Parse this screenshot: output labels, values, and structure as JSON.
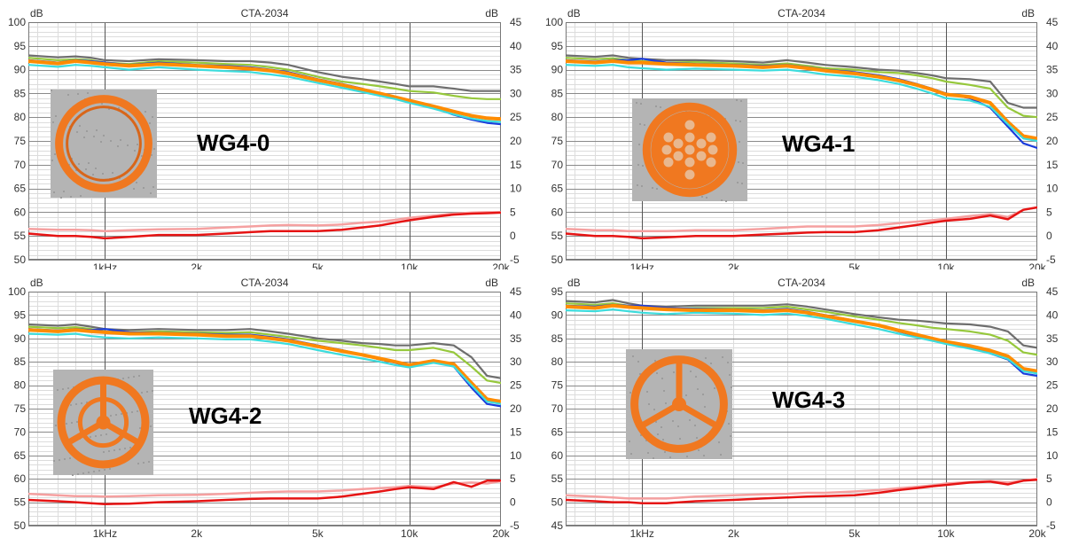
{
  "colors": {
    "grid_major": "#8a8a8a",
    "grid_minor": "#dcdcdc",
    "series_gray": "#6e6e6e",
    "series_green": "#96c83c",
    "series_blue": "#1a3cdc",
    "series_orange": "#ff8c00",
    "series_cyan": "#3cdcdc",
    "series_red": "#e61414",
    "series_pink": "#f5a0a0",
    "photo_bg": "#b4b4b4",
    "ring": "#f07820"
  },
  "chart_data": [
    {
      "type": "line",
      "title": "CTA-2034",
      "left_unit": "dB",
      "right_unit": "dB",
      "label": "WG4-0",
      "photo_icon": "waveguide-ring-open-icon",
      "x_scale": "log",
      "xlim": [
        560,
        20000
      ],
      "x_ticks": [
        {
          "v": 1000,
          "t": "1kHz"
        },
        {
          "v": 2000,
          "t": "2k"
        },
        {
          "v": 5000,
          "t": "5k"
        },
        {
          "v": 10000,
          "t": "10k"
        },
        {
          "v": 20000,
          "t": "20k"
        }
      ],
      "ylim_left": [
        50,
        100
      ],
      "y_ticks_left": [
        "100",
        "95",
        "90",
        "85",
        "80",
        "75",
        "70",
        "65",
        "60",
        "55",
        "50"
      ],
      "ylim_right": [
        -5,
        45
      ],
      "y_ticks_right": [
        "45",
        "40",
        "35",
        "30",
        "25",
        "20",
        "15",
        "10",
        "5",
        "0",
        "-5"
      ],
      "x": [
        560,
        700,
        800,
        900,
        1000,
        1200,
        1500,
        2000,
        2500,
        3000,
        3500,
        4000,
        5000,
        6000,
        7000,
        8000,
        9000,
        10000,
        12000,
        14000,
        16000,
        18000,
        20000
      ],
      "series": [
        {
          "color": "series_gray",
          "values": [
            93,
            92.6,
            92.8,
            92.5,
            92,
            91.8,
            92.2,
            92,
            91.8,
            91.8,
            91.5,
            91,
            89.5,
            88.5,
            88,
            87.5,
            87,
            86.5,
            86.5,
            86,
            85.5,
            85.5,
            85.5
          ]
        },
        {
          "color": "series_green",
          "values": [
            92.5,
            92,
            92.2,
            92,
            91.5,
            91.2,
            91.8,
            91.5,
            91.2,
            91,
            90.5,
            90,
            88.5,
            87.5,
            87,
            86.5,
            86,
            85.5,
            85.2,
            84.5,
            84,
            83.8,
            83.8
          ]
        },
        {
          "color": "series_blue",
          "values": [
            92,
            91.5,
            92,
            91.8,
            91.5,
            91,
            91.5,
            91,
            90.8,
            90.5,
            90,
            89.5,
            88,
            87,
            86,
            85,
            84.2,
            83.5,
            82,
            80.5,
            79.5,
            78.8,
            78.5
          ]
        },
        {
          "color": "series_orange",
          "values": [
            91.8,
            91.3,
            91.8,
            91.5,
            91.2,
            90.8,
            91.2,
            90.8,
            90.5,
            90.2,
            89.8,
            89.2,
            87.8,
            86.8,
            85.8,
            85,
            84.2,
            83.5,
            82.3,
            81.2,
            80.3,
            79.8,
            79.6
          ]
        },
        {
          "color": "series_cyan",
          "values": [
            91,
            90.6,
            91,
            90.8,
            90.5,
            90,
            90.5,
            90,
            89.7,
            89.5,
            89,
            88.5,
            87.2,
            86.2,
            85.3,
            84.5,
            83.8,
            83,
            81.8,
            80.6,
            79.7,
            79.2,
            79
          ]
        },
        {
          "color": "series_pink",
          "values": [
            56.5,
            56.3,
            56.3,
            56.2,
            56,
            56.2,
            56.4,
            56.5,
            56.8,
            57,
            57.2,
            57.3,
            57.2,
            57.4,
            57.8,
            58,
            58.4,
            58.8,
            59.3,
            59.7,
            59.9,
            60,
            60
          ]
        },
        {
          "color": "series_red",
          "values": [
            55.5,
            55,
            55,
            54.8,
            54.5,
            54.8,
            55.2,
            55.2,
            55.5,
            55.8,
            56,
            56,
            56,
            56.3,
            56.8,
            57.2,
            57.8,
            58.3,
            59,
            59.5,
            59.7,
            59.8,
            59.9
          ]
        }
      ]
    },
    {
      "type": "line",
      "title": "CTA-2034",
      "left_unit": "dB",
      "right_unit": "dB",
      "label": "WG4-1",
      "photo_icon": "waveguide-perforated-plate-icon",
      "x_scale": "log",
      "xlim": [
        560,
        20000
      ],
      "x_ticks": [
        {
          "v": 1000,
          "t": "1kHz"
        },
        {
          "v": 2000,
          "t": "2k"
        },
        {
          "v": 5000,
          "t": "5k"
        },
        {
          "v": 10000,
          "t": "10k"
        },
        {
          "v": 20000,
          "t": "20k"
        }
      ],
      "ylim_left": [
        50,
        100
      ],
      "y_ticks_left": [
        "100",
        "95",
        "90",
        "85",
        "80",
        "75",
        "70",
        "65",
        "60",
        "55",
        "50"
      ],
      "ylim_right": [
        -5,
        45
      ],
      "y_ticks_right": [
        "45",
        "40",
        "35",
        "30",
        "25",
        "20",
        "15",
        "10",
        "5",
        "0",
        "-5"
      ],
      "x": [
        560,
        700,
        800,
        900,
        1000,
        1200,
        1500,
        2000,
        2500,
        3000,
        3500,
        4000,
        5000,
        6000,
        7000,
        8000,
        9000,
        10000,
        12000,
        14000,
        16000,
        18000,
        20000
      ],
      "series": [
        {
          "color": "series_gray",
          "values": [
            93,
            92.7,
            93,
            92.5,
            92.3,
            92,
            92,
            91.8,
            91.5,
            92,
            91.5,
            91,
            90.5,
            90,
            89.8,
            89.3,
            88.8,
            88.2,
            88,
            87.5,
            83,
            82,
            82
          ]
        },
        {
          "color": "series_green",
          "values": [
            92.5,
            92.2,
            92.4,
            92,
            91.8,
            91.5,
            91.6,
            91.3,
            91,
            91.3,
            90.8,
            90.3,
            90,
            89.5,
            89.3,
            88.8,
            88.2,
            87.5,
            86.8,
            86,
            82,
            80.3,
            80
          ]
        },
        {
          "color": "series_blue",
          "values": [
            92,
            91.7,
            92,
            92,
            92.3,
            91.5,
            91.2,
            91,
            90.8,
            91,
            90.5,
            90,
            89.5,
            88.8,
            88,
            87,
            86,
            85,
            84,
            82,
            78,
            74.5,
            73.5
          ]
        },
        {
          "color": "series_orange",
          "values": [
            91.8,
            91.5,
            91.8,
            91.5,
            91.5,
            91.2,
            91,
            90.8,
            90.5,
            90.8,
            90.3,
            89.8,
            89.2,
            88.5,
            87.7,
            86.8,
            85.8,
            84.8,
            84.3,
            83,
            79,
            76,
            75.5
          ]
        },
        {
          "color": "series_cyan",
          "values": [
            91,
            90.8,
            91,
            90.5,
            90.3,
            90,
            90.2,
            90,
            89.8,
            90,
            89.5,
            89,
            88.5,
            87.8,
            87,
            86,
            85,
            84,
            83.5,
            82.2,
            78.5,
            75.5,
            75
          ]
        },
        {
          "color": "series_pink",
          "values": [
            56.5,
            56.2,
            56.2,
            56,
            56,
            56,
            56.2,
            56.2,
            56.5,
            56.8,
            57,
            57,
            57,
            57.3,
            57.7,
            58,
            58.3,
            58.6,
            59.2,
            59.6,
            59,
            60.5,
            61
          ]
        },
        {
          "color": "series_red",
          "values": [
            55.5,
            55,
            55,
            54.8,
            54.5,
            54.7,
            55,
            55,
            55.3,
            55.5,
            55.7,
            55.8,
            55.8,
            56.2,
            56.8,
            57.3,
            57.8,
            58.2,
            58.6,
            59.3,
            58.5,
            60.5,
            61
          ]
        }
      ]
    },
    {
      "type": "line",
      "title": "CTA-2034",
      "left_unit": "dB",
      "right_unit": "dB",
      "label": "WG4-2",
      "photo_icon": "waveguide-two-ring-spokes-icon",
      "x_scale": "log",
      "xlim": [
        560,
        20000
      ],
      "x_ticks": [
        {
          "v": 1000,
          "t": "1kHz"
        },
        {
          "v": 2000,
          "t": "2k"
        },
        {
          "v": 5000,
          "t": "5k"
        },
        {
          "v": 10000,
          "t": "10k"
        },
        {
          "v": 20000,
          "t": "20k"
        }
      ],
      "ylim_left": [
        50,
        100
      ],
      "y_ticks_left": [
        "100",
        "95",
        "90",
        "85",
        "80",
        "75",
        "70",
        "65",
        "60",
        "55",
        "50"
      ],
      "ylim_right": [
        -5,
        45
      ],
      "y_ticks_right": [
        "45",
        "40",
        "35",
        "30",
        "25",
        "20",
        "15",
        "10",
        "5",
        "0",
        "-5"
      ],
      "x": [
        560,
        700,
        800,
        900,
        1000,
        1200,
        1500,
        2000,
        2500,
        3000,
        3500,
        4000,
        5000,
        6000,
        7000,
        8000,
        9000,
        10000,
        12000,
        14000,
        16000,
        18000,
        20000
      ],
      "series": [
        {
          "color": "series_gray",
          "values": [
            93,
            92.7,
            93,
            92.5,
            92,
            91.8,
            92,
            91.8,
            91.8,
            92,
            91.5,
            91,
            90,
            89.5,
            89,
            88.8,
            88.5,
            88.5,
            89,
            88.5,
            86,
            82,
            81.5
          ]
        },
        {
          "color": "series_green",
          "values": [
            92.5,
            92.2,
            92.4,
            92,
            91.5,
            91.3,
            91.5,
            91.3,
            91.2,
            91.3,
            90.8,
            90.3,
            89.5,
            89,
            88.5,
            88,
            87.5,
            87.5,
            88,
            87,
            84,
            81,
            80.5
          ]
        },
        {
          "color": "series_blue",
          "values": [
            92,
            91.7,
            92,
            91.8,
            92,
            91.3,
            91.2,
            91,
            90.8,
            90.8,
            90.3,
            89.8,
            88.5,
            87.5,
            86.5,
            85.5,
            84.8,
            84,
            85,
            84,
            79.5,
            76,
            75.5
          ]
        },
        {
          "color": "series_orange",
          "values": [
            91.8,
            91.5,
            91.8,
            91.5,
            91.3,
            91,
            91,
            90.8,
            90.5,
            90.5,
            90,
            89.5,
            88.3,
            87.3,
            86.5,
            85.7,
            85,
            84.3,
            85.2,
            84.5,
            80.5,
            77,
            76.5
          ]
        },
        {
          "color": "series_cyan",
          "values": [
            91,
            90.8,
            91,
            90.5,
            90.2,
            90,
            90.2,
            90,
            89.8,
            89.8,
            89.3,
            88.8,
            87.5,
            86.5,
            85.7,
            85,
            84.3,
            83.8,
            84.8,
            84,
            80,
            76.5,
            76
          ]
        },
        {
          "color": "series_pink",
          "values": [
            56.8,
            56.5,
            56.3,
            56.3,
            56.2,
            56.3,
            56.5,
            56.6,
            56.8,
            57,
            57.2,
            57.3,
            57.3,
            57.5,
            57.8,
            58,
            58.2,
            58.5,
            58.2,
            59,
            59.2,
            59,
            59.5
          ]
        },
        {
          "color": "series_red",
          "values": [
            55.5,
            55.2,
            55,
            54.8,
            54.6,
            54.7,
            55,
            55.2,
            55.5,
            55.7,
            55.8,
            55.8,
            55.8,
            56.2,
            56.8,
            57.3,
            57.8,
            58.2,
            57.8,
            59.3,
            58.3,
            59.6,
            59.6
          ]
        }
      ]
    },
    {
      "type": "line",
      "title": "CTA-2034",
      "left_unit": "dB",
      "right_unit": "dB",
      "label": "WG4-3",
      "photo_icon": "waveguide-three-spoke-icon",
      "x_scale": "log",
      "xlim": [
        560,
        20000
      ],
      "x_ticks": [
        {
          "v": 1000,
          "t": "1kHz"
        },
        {
          "v": 2000,
          "t": "2k"
        },
        {
          "v": 5000,
          "t": "5k"
        },
        {
          "v": 10000,
          "t": "10k"
        },
        {
          "v": 20000,
          "t": "20k"
        }
      ],
      "ylim_left": [
        45,
        95
      ],
      "y_ticks_left": [
        "95",
        "90",
        "85",
        "80",
        "75",
        "70",
        "65",
        "60",
        "55",
        "50",
        "45"
      ],
      "ylim_right": [
        -5,
        45
      ],
      "y_ticks_right": [
        "45",
        "40",
        "35",
        "30",
        "25",
        "20",
        "15",
        "10",
        "5",
        "0",
        "-5"
      ],
      "x": [
        560,
        700,
        800,
        900,
        1000,
        1200,
        1500,
        2000,
        2500,
        3000,
        3500,
        4000,
        5000,
        6000,
        7000,
        8000,
        9000,
        10000,
        12000,
        14000,
        16000,
        18000,
        20000
      ],
      "series": [
        {
          "color": "series_gray",
          "values": [
            93,
            92.7,
            93.2,
            92.5,
            92,
            91.8,
            92,
            92,
            92,
            92.3,
            91.8,
            91.2,
            90.2,
            89.5,
            89,
            88.8,
            88.5,
            88.2,
            88,
            87.5,
            86.5,
            83.5,
            83
          ]
        },
        {
          "color": "series_green",
          "values": [
            92.5,
            92.2,
            92.5,
            92,
            91.5,
            91.3,
            91.5,
            91.5,
            91.5,
            91.8,
            91.2,
            90.7,
            89.7,
            89,
            88.3,
            87.8,
            87.3,
            87,
            86.5,
            85.8,
            84.5,
            82,
            81.5
          ]
        },
        {
          "color": "series_blue",
          "values": [
            92,
            91.8,
            92.2,
            92,
            92,
            91.5,
            91.3,
            91.2,
            91,
            91.3,
            90.7,
            90,
            88.8,
            87.8,
            86.5,
            85.5,
            84.8,
            84,
            83,
            81.8,
            80.5,
            77.5,
            77
          ]
        },
        {
          "color": "series_orange",
          "values": [
            91.8,
            91.5,
            92,
            91.7,
            91.5,
            91.2,
            91,
            91,
            90.8,
            91,
            90.5,
            89.8,
            88.7,
            87.8,
            86.7,
            85.8,
            85,
            84.3,
            83.4,
            82.4,
            81.2,
            78.5,
            78
          ]
        },
        {
          "color": "series_cyan",
          "values": [
            91,
            90.8,
            91.2,
            90.8,
            90.5,
            90.2,
            90.5,
            90.3,
            90,
            90.3,
            89.8,
            89.2,
            88,
            87,
            86,
            85.2,
            84.5,
            83.8,
            82.8,
            81.8,
            80.6,
            78,
            77.5
          ]
        },
        {
          "color": "series_pink",
          "values": [
            51.5,
            51.2,
            51,
            50.8,
            50.8,
            50.8,
            51.2,
            51.5,
            51.7,
            51.8,
            52,
            52,
            52.3,
            52.6,
            53,
            53.3,
            53.6,
            54,
            54.3,
            54.5,
            54.2,
            54.6,
            55
          ]
        },
        {
          "color": "series_red",
          "values": [
            50.5,
            50.2,
            50,
            50,
            49.8,
            49.8,
            50.2,
            50.5,
            50.8,
            51,
            51.2,
            51.3,
            51.5,
            52,
            52.6,
            53,
            53.4,
            53.7,
            54.2,
            54.4,
            53.8,
            54.6,
            54.8
          ]
        }
      ]
    }
  ]
}
